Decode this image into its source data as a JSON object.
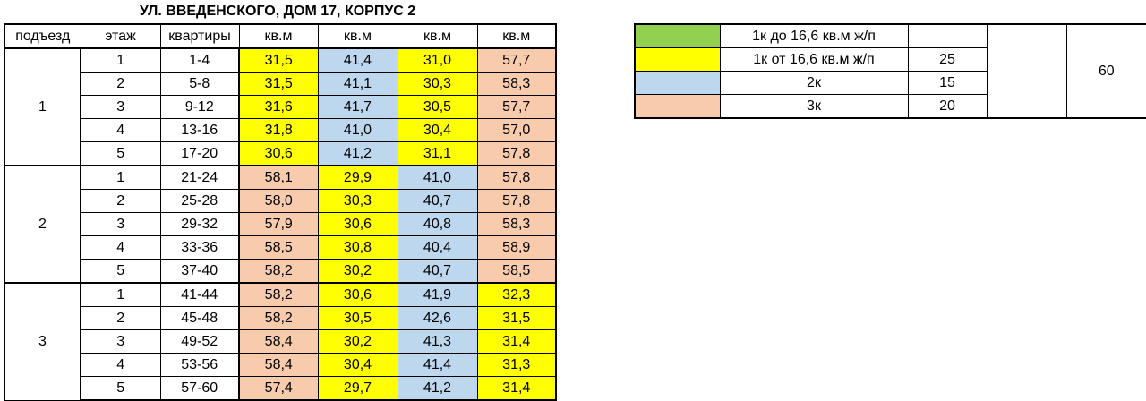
{
  "title": "УЛ. ВВЕДЕНСКОГО, ДОМ 17, КОРПУС 2",
  "colors": {
    "green": "#92d050",
    "yellow": "#ffff00",
    "blue": "#bdd7ee",
    "pink": "#f8cbad"
  },
  "headers": [
    "подъезд",
    "этаж",
    "квартиры",
    "кв.м",
    "кв.м",
    "кв.м",
    "кв.м"
  ],
  "entrances": [
    {
      "label": "1",
      "rows": [
        {
          "floor": "1",
          "apts": "1-4",
          "areas": [
            "31,5",
            "41,4",
            "31,0",
            "57,7"
          ],
          "colors": [
            "yellow",
            "blue",
            "yellow",
            "pink"
          ]
        },
        {
          "floor": "2",
          "apts": "5-8",
          "areas": [
            "31,5",
            "41,1",
            "30,3",
            "58,3"
          ],
          "colors": [
            "yellow",
            "blue",
            "yellow",
            "pink"
          ]
        },
        {
          "floor": "3",
          "apts": "9-12",
          "areas": [
            "31,6",
            "41,7",
            "30,5",
            "57,7"
          ],
          "colors": [
            "yellow",
            "blue",
            "yellow",
            "pink"
          ]
        },
        {
          "floor": "4",
          "apts": "13-16",
          "areas": [
            "31,8",
            "41,0",
            "30,4",
            "57,0"
          ],
          "colors": [
            "yellow",
            "blue",
            "yellow",
            "pink"
          ]
        },
        {
          "floor": "5",
          "apts": "17-20",
          "areas": [
            "30,6",
            "41,2",
            "31,1",
            "57,8"
          ],
          "colors": [
            "yellow",
            "blue",
            "yellow",
            "pink"
          ]
        }
      ]
    },
    {
      "label": "2",
      "rows": [
        {
          "floor": "1",
          "apts": "21-24",
          "areas": [
            "58,1",
            "29,9",
            "41,0",
            "57,8"
          ],
          "colors": [
            "pink",
            "yellow",
            "blue",
            "pink"
          ]
        },
        {
          "floor": "2",
          "apts": "25-28",
          "areas": [
            "58,0",
            "30,3",
            "40,7",
            "57,8"
          ],
          "colors": [
            "pink",
            "yellow",
            "blue",
            "pink"
          ]
        },
        {
          "floor": "3",
          "apts": "29-32",
          "areas": [
            "57,9",
            "30,6",
            "40,8",
            "58,3"
          ],
          "colors": [
            "pink",
            "yellow",
            "blue",
            "pink"
          ]
        },
        {
          "floor": "4",
          "apts": "33-36",
          "areas": [
            "58,5",
            "30,8",
            "40,4",
            "58,9"
          ],
          "colors": [
            "pink",
            "yellow",
            "blue",
            "pink"
          ]
        },
        {
          "floor": "5",
          "apts": "37-40",
          "areas": [
            "58,2",
            "30,2",
            "40,7",
            "58,5"
          ],
          "colors": [
            "pink",
            "yellow",
            "blue",
            "pink"
          ]
        }
      ]
    },
    {
      "label": "3",
      "rows": [
        {
          "floor": "1",
          "apts": "41-44",
          "areas": [
            "58,2",
            "30,6",
            "41,9",
            "32,3"
          ],
          "colors": [
            "pink",
            "yellow",
            "blue",
            "yellow"
          ]
        },
        {
          "floor": "2",
          "apts": "45-48",
          "areas": [
            "58,2",
            "30,5",
            "42,6",
            "31,5"
          ],
          "colors": [
            "pink",
            "yellow",
            "blue",
            "yellow"
          ]
        },
        {
          "floor": "3",
          "apts": "49-52",
          "areas": [
            "58,4",
            "30,2",
            "41,3",
            "31,4"
          ],
          "colors": [
            "pink",
            "yellow",
            "blue",
            "yellow"
          ]
        },
        {
          "floor": "4",
          "apts": "53-56",
          "areas": [
            "58,4",
            "30,4",
            "41,4",
            "31,3"
          ],
          "colors": [
            "pink",
            "yellow",
            "blue",
            "yellow"
          ]
        },
        {
          "floor": "5",
          "apts": "57-60",
          "areas": [
            "57,4",
            "29,7",
            "41,2",
            "31,4"
          ],
          "colors": [
            "pink",
            "yellow",
            "blue",
            "yellow"
          ]
        }
      ]
    }
  ],
  "legend": {
    "items": [
      {
        "color": "green",
        "label": "1к до 16,6 кв.м ж/п",
        "count": ""
      },
      {
        "color": "yellow",
        "label": "1к от 16,6 кв.м ж/п",
        "count": "25"
      },
      {
        "color": "blue",
        "label": "2к",
        "count": "15"
      },
      {
        "color": "pink",
        "label": "3к",
        "count": "20"
      }
    ],
    "total": "60"
  }
}
